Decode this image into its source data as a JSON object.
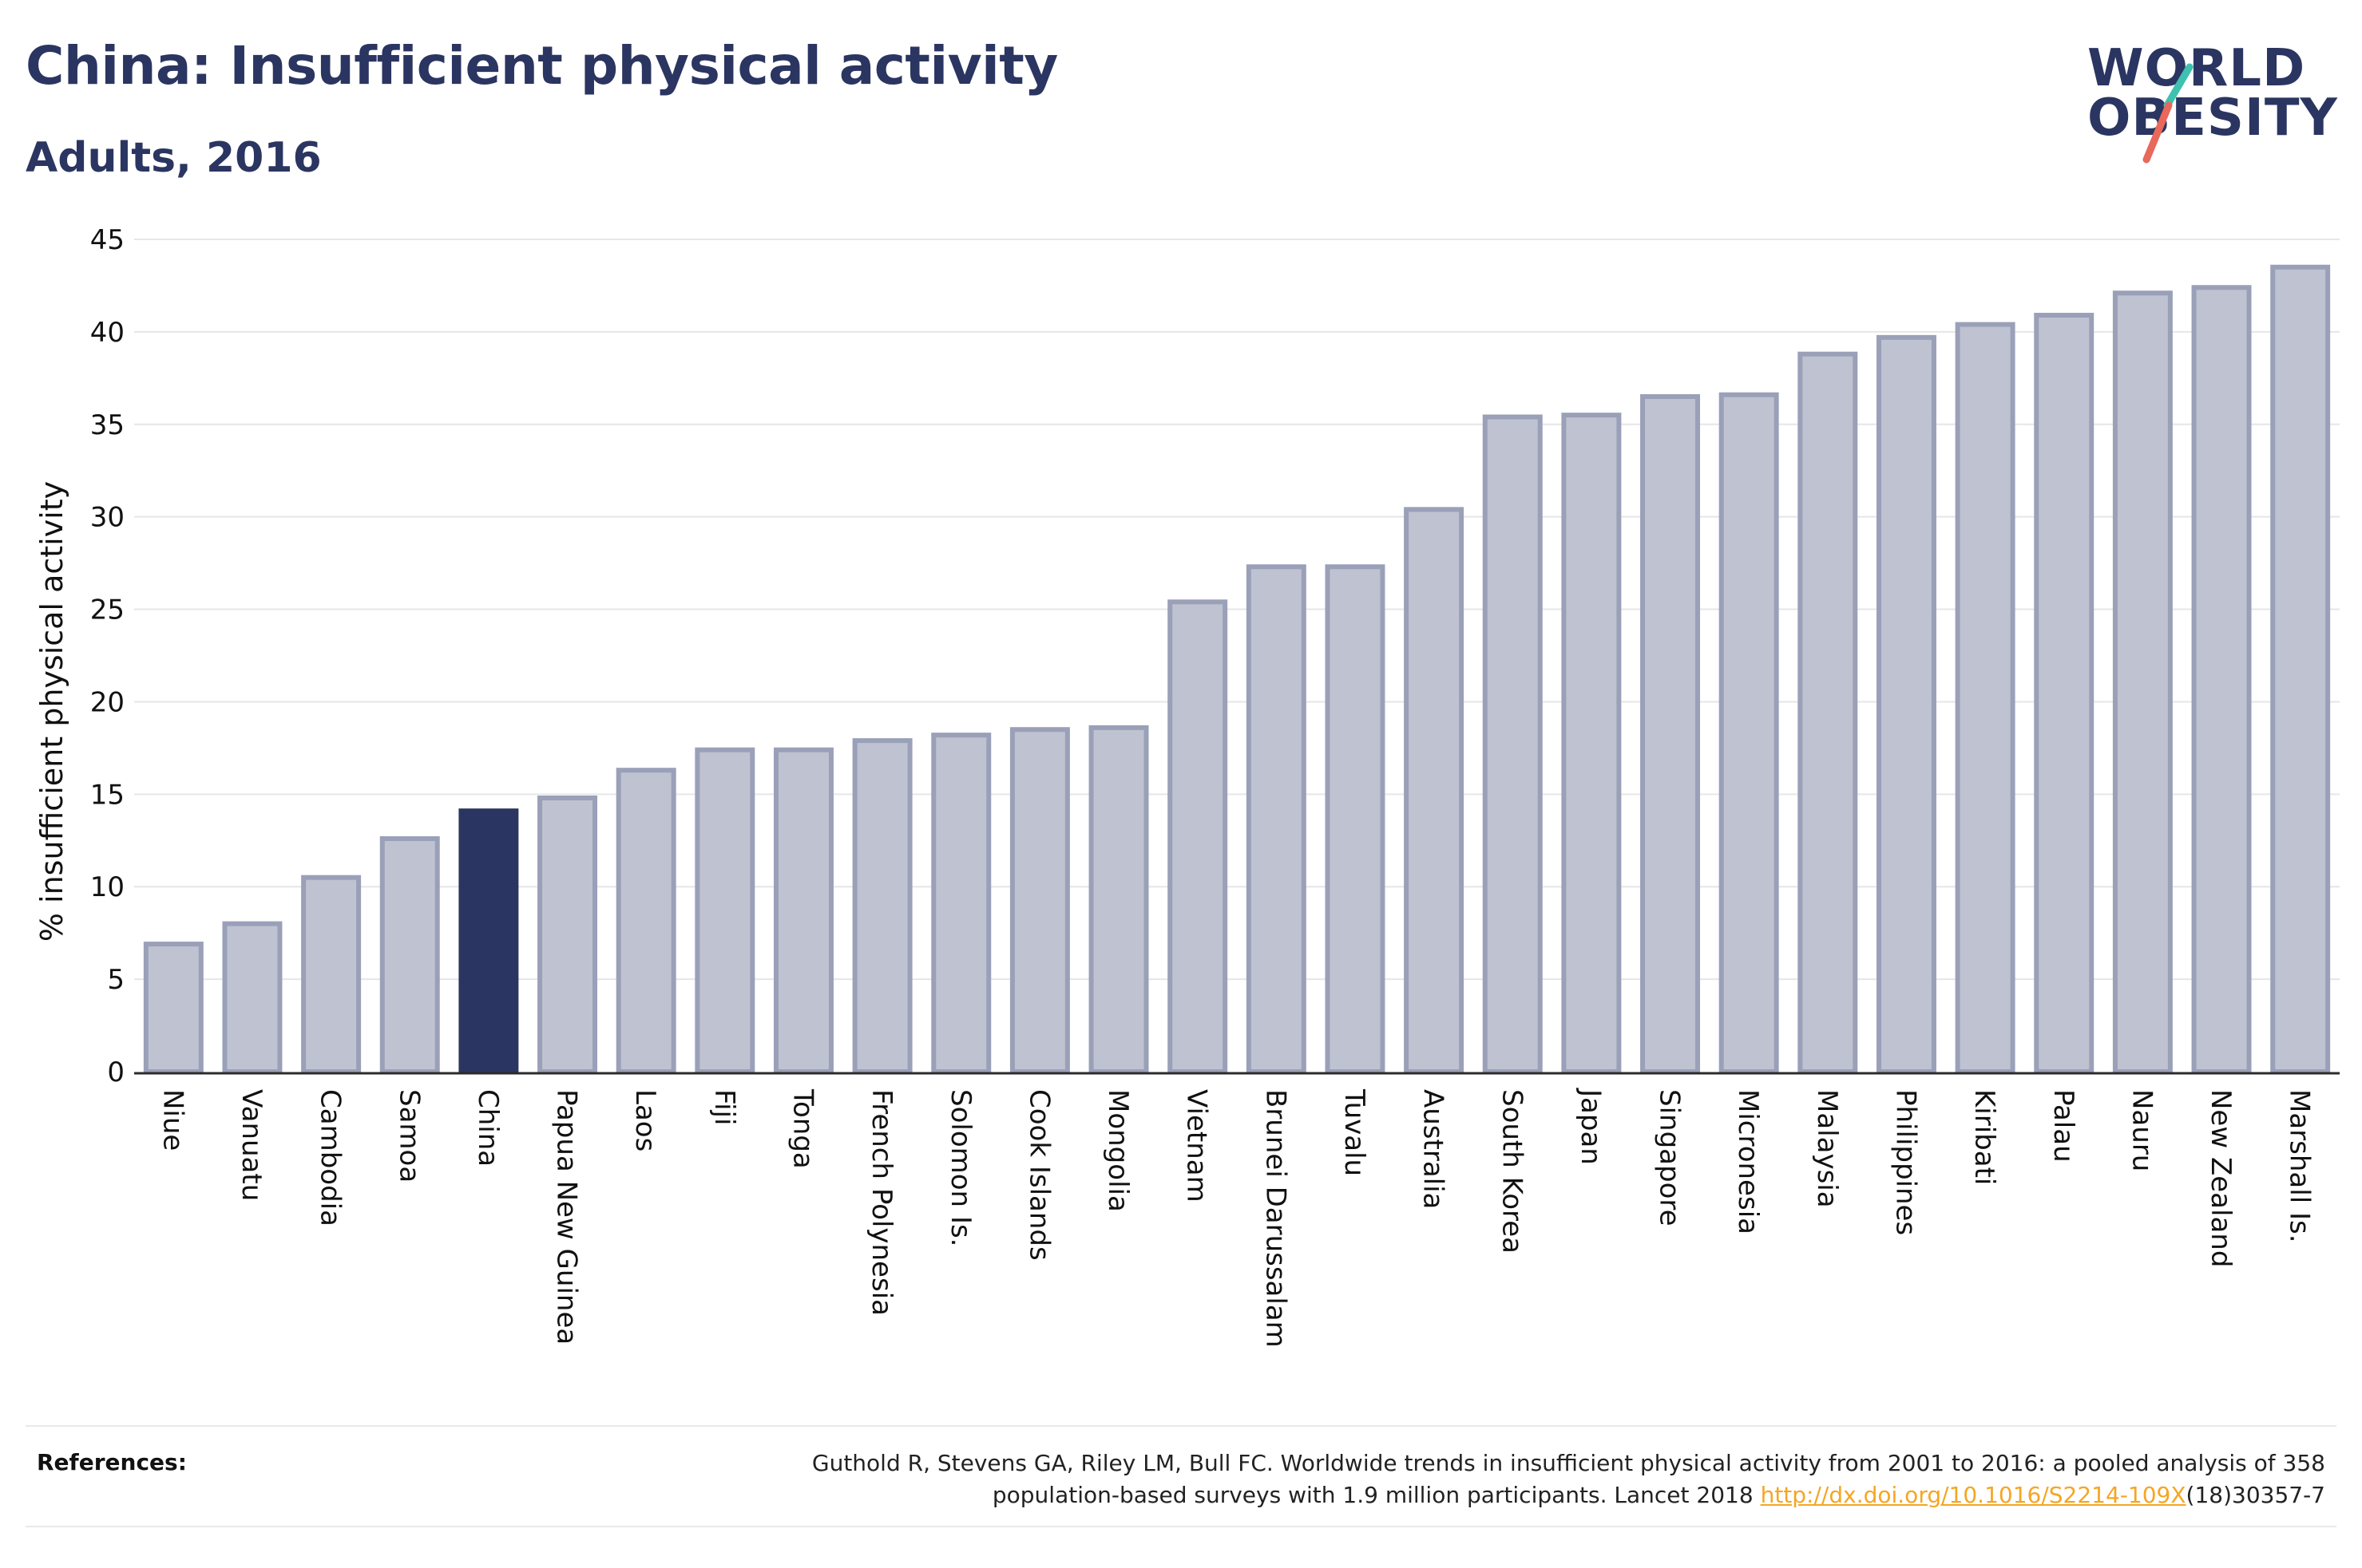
{
  "header": {
    "title": "China: Insufficient physical activity",
    "subtitle": "Adults, 2016"
  },
  "logo": {
    "line1": "WORLD",
    "line2": "OBESITY",
    "slash_colors": [
      "#3fc1b0",
      "#e8685a"
    ]
  },
  "colors": {
    "highlight": "#2b3561",
    "bar_fill": "#bfc2d0",
    "bar_stroke": "#9aa0b8",
    "grid": "#e6e6ea",
    "link": "#f5a623"
  },
  "chart_data": {
    "type": "bar",
    "title": "China: Insufficient physical activity",
    "subtitle": "Adults, 2016",
    "xlabel": "",
    "ylabel": "% insufficient physical activity",
    "ylim": [
      0,
      45
    ],
    "yticks": [
      0,
      5,
      10,
      15,
      20,
      25,
      30,
      35,
      40,
      45
    ],
    "grid": true,
    "highlight": "China",
    "categories": [
      "Niue",
      "Vanuatu",
      "Cambodia",
      "Samoa",
      "China",
      "Papua New Guinea",
      "Laos",
      "Fiji",
      "Tonga",
      "French Polynesia",
      "Solomon Is.",
      "Cook Islands",
      "Mongolia",
      "Vietnam",
      "Brunei Darussalam",
      "Tuvalu",
      "Australia",
      "South Korea",
      "Japan",
      "Singapore",
      "Micronesia",
      "Malaysia",
      "Philippines",
      "Kiribati",
      "Palau",
      "Nauru",
      "New Zealand",
      "Marshall Is."
    ],
    "values": [
      6.9,
      8.0,
      10.5,
      12.6,
      14.1,
      14.8,
      16.3,
      17.4,
      17.4,
      17.9,
      18.2,
      18.5,
      18.6,
      25.4,
      27.3,
      27.3,
      30.4,
      35.4,
      35.5,
      36.5,
      36.6,
      38.8,
      39.7,
      40.4,
      40.9,
      42.1,
      42.4,
      43.5
    ]
  },
  "references": {
    "label": "References:",
    "line1": "Guthold R, Stevens GA, Riley LM, Bull FC. Worldwide trends in insufficient physical activity from 2001 to 2016: a pooled analysis of 358",
    "line2_pre": "population-based surveys with 1.9 million participants. Lancet 2018 ",
    "link": "http://dx.doi.org/10.1016/S2214-109X",
    "line2_post": "(18)30357-7"
  }
}
